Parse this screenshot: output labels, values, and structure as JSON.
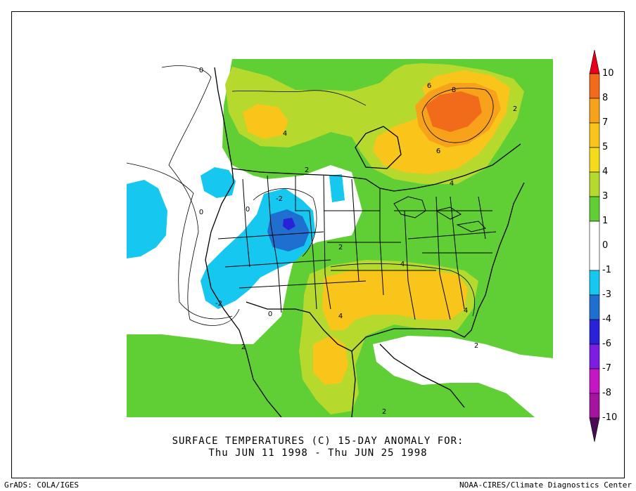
{
  "caption": {
    "line1": "SURFACE TEMPERATURES (C)   15-DAY ANOMALY FOR:",
    "line2": "Thu JUN 11 1998 - Thu JUN 25 1998"
  },
  "credits": {
    "left": "GrADS: COLA/IGES",
    "right": "NOAA-CIRES/Climate Diagnostics Center"
  },
  "colorbar": {
    "labels": [
      "10",
      "8",
      "7",
      "5",
      "4",
      "3",
      "1",
      "0",
      "-1",
      "-3",
      "-4",
      "-6",
      "-7",
      "-8",
      "-10"
    ],
    "colors": {
      "above_10": "#e8001a",
      "8_10": "#f26b1a",
      "7_8": "#f7a21a",
      "5_7": "#f9c51a",
      "4_5": "#f5dc1a",
      "3_4": "#b6d92e",
      "1_3": "#5fcf35",
      "-1_1": "#ffffff",
      "-3_-1": "#16c8ef",
      "-4_-3": "#1f6fd0",
      "-6_-4": "#2a22d8",
      "-7_-6": "#7b1ee0",
      "-8_-7": "#c416c4",
      "-10_-8": "#a4149f",
      "below_-10": "#4a0a55"
    }
  },
  "contour_labels": [
    "0",
    "4",
    "6",
    "8",
    "6",
    "2",
    "4",
    "2",
    "-2",
    "0",
    "2",
    "4",
    "-2",
    "0",
    "4",
    "4",
    "2",
    "2",
    "2",
    "0"
  ]
}
